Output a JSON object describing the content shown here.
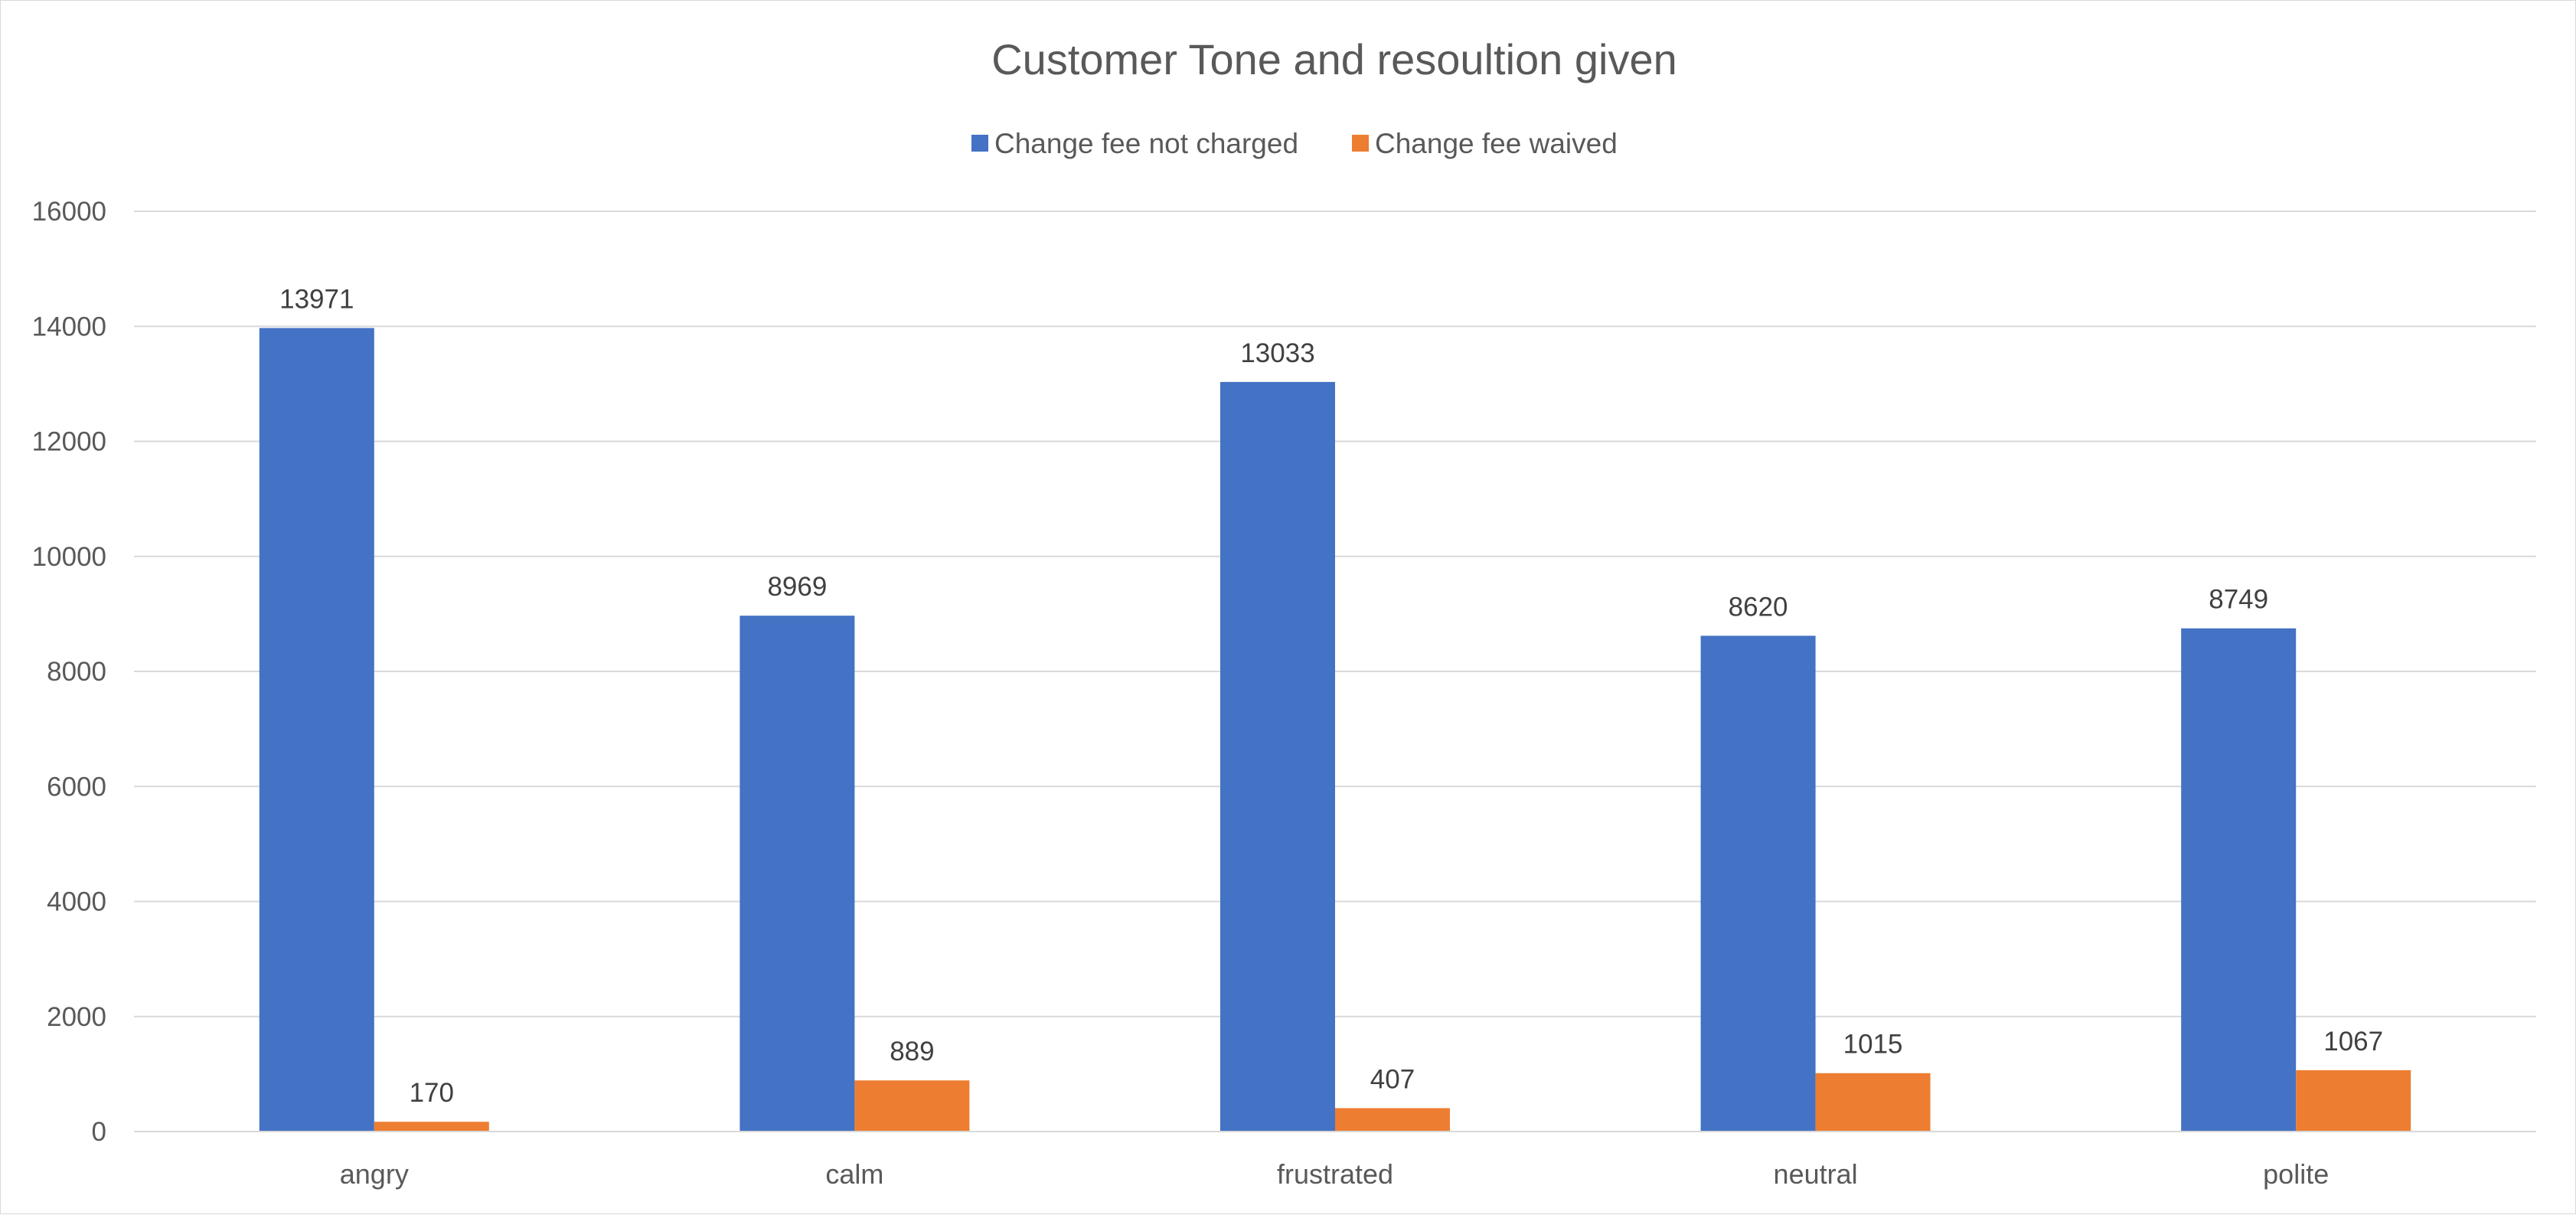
{
  "chart_data": {
    "type": "bar",
    "title": "Customer Tone and resoultion given",
    "xlabel": "",
    "ylabel": "",
    "categories": [
      "angry",
      "calm",
      "frustrated",
      "neutral",
      "polite"
    ],
    "series": [
      {
        "name": "Change fee not charged",
        "color": "#4472C4",
        "values": [
          13971,
          8969,
          13033,
          8620,
          8749
        ]
      },
      {
        "name": "Change fee waived",
        "color": "#ED7D31",
        "values": [
          170,
          889,
          407,
          1015,
          1067
        ]
      }
    ],
    "ylim": [
      0,
      16000
    ],
    "yticks": [
      "0",
      "2000",
      "4000",
      "6000",
      "8000",
      "10000",
      "12000",
      "14000",
      "16000"
    ],
    "grid": true,
    "legend_position": "top",
    "data_labels": true
  }
}
